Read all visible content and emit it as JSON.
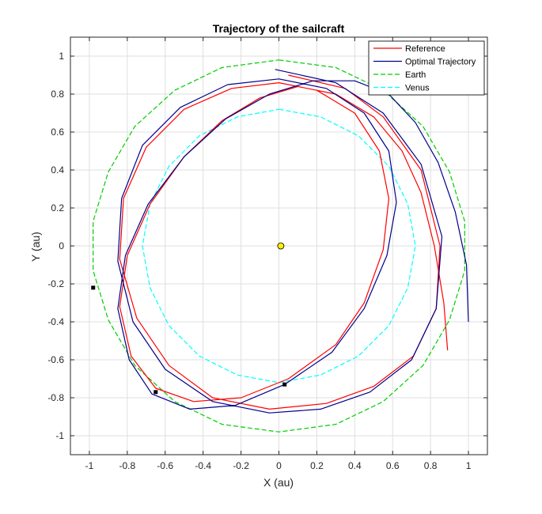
{
  "chart_data": {
    "type": "line",
    "title": "Trajectory of the sailcraft",
    "xlabel": "X (au)",
    "ylabel": "Y (au)",
    "xlim": [
      -1.1,
      1.1
    ],
    "ylim": [
      -1.1,
      1.1
    ],
    "grid": true,
    "legend_position": "top-right",
    "x_ticks": [
      -1,
      -0.8,
      -0.6,
      -0.4,
      -0.2,
      0,
      0.2,
      0.4,
      0.6,
      0.8,
      1
    ],
    "y_ticks": [
      -1,
      -0.8,
      -0.6,
      -0.4,
      -0.2,
      0,
      0.2,
      0.4,
      0.6,
      0.8,
      1
    ],
    "x_tick_labels": [
      "-1",
      "-0.8",
      "-0.6",
      "-0.4",
      "-0.2",
      "0",
      "0.2",
      "0.4",
      "0.6",
      "0.8",
      "1"
    ],
    "y_tick_labels": [
      "-1",
      "-0.8",
      "-0.6",
      "-0.4",
      "-0.2",
      "0",
      "0.2",
      "0.4",
      "0.6",
      "0.8",
      "1"
    ],
    "series": [
      {
        "name": "Reference",
        "color": "#ff0000",
        "style": "solid",
        "x": [
          0.05,
          0.35,
          0.55,
          0.75,
          0.85,
          0.83,
          0.71,
          0.5,
          0.25,
          -0.05,
          -0.35,
          -0.58,
          -0.75,
          -0.84,
          -0.82,
          -0.7,
          -0.5,
          -0.25,
          0.0,
          0.2,
          0.4,
          0.53,
          0.58,
          0.55,
          0.45,
          0.3,
          0.05,
          -0.2,
          -0.45,
          -0.65,
          -0.78,
          -0.84,
          -0.8,
          -0.68,
          -0.5,
          -0.3,
          -0.1,
          0.1,
          0.3,
          0.5,
          0.65,
          0.75,
          0.82,
          0.87,
          0.89
        ],
        "y": [
          0.9,
          0.83,
          0.68,
          0.4,
          0.0,
          -0.33,
          -0.58,
          -0.74,
          -0.83,
          -0.86,
          -0.8,
          -0.63,
          -0.38,
          -0.07,
          0.25,
          0.52,
          0.72,
          0.83,
          0.86,
          0.82,
          0.7,
          0.5,
          0.25,
          -0.02,
          -0.3,
          -0.52,
          -0.7,
          -0.8,
          -0.82,
          -0.75,
          -0.58,
          -0.32,
          -0.05,
          0.22,
          0.47,
          0.66,
          0.78,
          0.84,
          0.8,
          0.68,
          0.5,
          0.28,
          0.0,
          -0.3,
          -0.55
        ]
      },
      {
        "name": "Optimal Trajectory",
        "color": "#00008b",
        "style": "solid",
        "x": [
          -0.02,
          0.3,
          0.55,
          0.75,
          0.86,
          0.83,
          0.7,
          0.48,
          0.22,
          -0.05,
          -0.35,
          -0.6,
          -0.77,
          -0.85,
          -0.83,
          -0.72,
          -0.52,
          -0.27,
          0.0,
          0.25,
          0.45,
          0.58,
          0.62,
          0.57,
          0.45,
          0.28,
          0.03,
          -0.23,
          -0.47,
          -0.67,
          -0.79,
          -0.85,
          -0.81,
          -0.69,
          -0.5,
          -0.28,
          -0.05,
          0.18,
          0.4,
          0.58,
          0.72,
          0.84,
          0.93,
          0.99,
          1.0
        ],
        "y": [
          0.93,
          0.86,
          0.7,
          0.43,
          0.05,
          -0.33,
          -0.6,
          -0.77,
          -0.86,
          -0.88,
          -0.82,
          -0.65,
          -0.4,
          -0.08,
          0.25,
          0.53,
          0.73,
          0.85,
          0.88,
          0.83,
          0.7,
          0.5,
          0.23,
          -0.05,
          -0.33,
          -0.56,
          -0.73,
          -0.84,
          -0.86,
          -0.78,
          -0.6,
          -0.33,
          -0.05,
          0.22,
          0.47,
          0.67,
          0.8,
          0.87,
          0.87,
          0.8,
          0.65,
          0.44,
          0.18,
          -0.1,
          -0.4
        ]
      },
      {
        "name": "Earth",
        "color": "#00cc00",
        "style": "dashed",
        "x": [
          0.0,
          0.3,
          0.55,
          0.76,
          0.9,
          0.98,
          0.98,
          0.9,
          0.76,
          0.55,
          0.3,
          0.0,
          -0.3,
          -0.55,
          -0.76,
          -0.9,
          -0.98,
          -0.98,
          -0.9,
          -0.76,
          -0.55,
          -0.3,
          0.0
        ],
        "y": [
          0.98,
          0.94,
          0.82,
          0.63,
          0.39,
          0.13,
          -0.13,
          -0.39,
          -0.63,
          -0.82,
          -0.94,
          -0.98,
          -0.94,
          -0.82,
          -0.63,
          -0.39,
          -0.13,
          0.13,
          0.39,
          0.63,
          0.82,
          0.94,
          0.98
        ]
      },
      {
        "name": "Venus",
        "color": "#00ffff",
        "style": "dashed",
        "x": [
          0.0,
          0.22,
          0.42,
          0.58,
          0.68,
          0.72,
          0.68,
          0.58,
          0.42,
          0.22,
          0.0,
          -0.22,
          -0.42,
          -0.58,
          -0.68,
          -0.72,
          -0.68,
          -0.58,
          -0.42,
          -0.22,
          0.0
        ],
        "y": [
          0.72,
          0.68,
          0.58,
          0.42,
          0.22,
          0.0,
          -0.22,
          -0.42,
          -0.58,
          -0.68,
          -0.72,
          -0.68,
          -0.58,
          -0.42,
          -0.22,
          0.0,
          0.22,
          0.42,
          0.58,
          0.68,
          0.72
        ]
      }
    ],
    "markers": [
      {
        "kind": "sun",
        "x": 0.01,
        "y": 0.0,
        "color": "#ffee00"
      },
      {
        "kind": "point",
        "x": -0.98,
        "y": -0.22,
        "color": "#000000"
      },
      {
        "kind": "point",
        "x": -0.65,
        "y": -0.77,
        "color": "#000000"
      },
      {
        "kind": "point",
        "x": 0.03,
        "y": -0.73,
        "color": "#000000"
      }
    ]
  }
}
